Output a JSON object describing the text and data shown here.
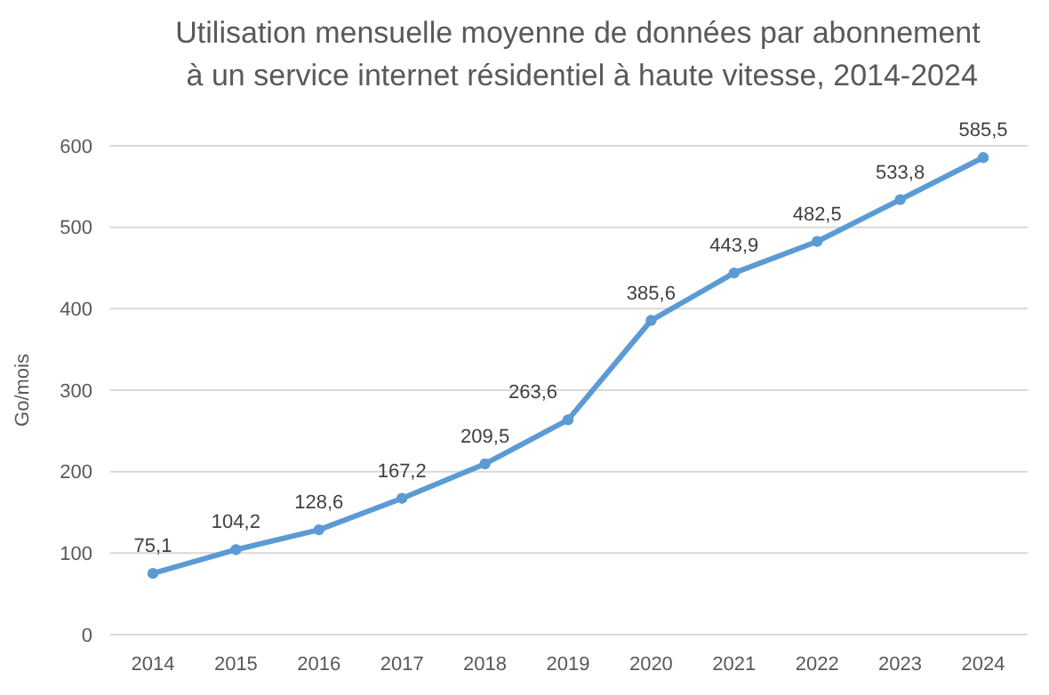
{
  "chart_data": {
    "type": "line",
    "title": "Utilisation mensuelle moyenne de données par abonnement\n à un service internet résidentiel à haute vitesse, 2014-2024",
    "ylabel": "Go/mois",
    "categories": [
      "2014",
      "2015",
      "2016",
      "2017",
      "2018",
      "2019",
      "2020",
      "2021",
      "2022",
      "2023",
      "2024"
    ],
    "series": [
      {
        "color": "#5b9bd5",
        "values": [
          75.1,
          104.2,
          128.6,
          167.2,
          209.5,
          263.6,
          385.6,
          443.9,
          482.5,
          533.8,
          585.5
        ],
        "value_labels": [
          "75,1",
          "104,2",
          "128,6",
          "167,2",
          "209,5",
          "263,6",
          "385,6",
          "443,9",
          "482,5",
          "533,8",
          "585,5"
        ]
      }
    ],
    "ylim": [
      0,
      600
    ],
    "yticks": [
      0,
      100,
      200,
      300,
      400,
      500,
      600
    ],
    "grid": "y",
    "marker": "circle",
    "line_style": "solid"
  }
}
